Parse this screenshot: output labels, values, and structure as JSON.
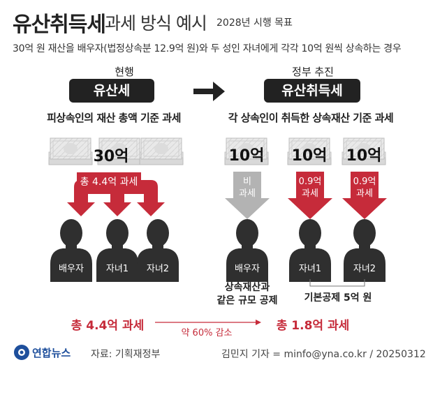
{
  "header": {
    "title_main": "유산취득세",
    "title_sub": "과세 방식 예시",
    "title_note": "2028년 시행 목표",
    "description": "30억 원 재산을 배우자(법정상속분 12.9억 원)와 두 성인 자녀에게 각각 10억 원씩 상속하는 경우"
  },
  "current": {
    "label": "현행",
    "pill": "유산세",
    "basis": "피상속인의 재산 총액 기준 과세",
    "amount": "30억",
    "tax_label": "총 4.4억 과세",
    "persons": [
      "배우자",
      "자녀1",
      "자녀2"
    ]
  },
  "proposed": {
    "label": "정부 추진",
    "pill": "유산취득세",
    "basis": "각 상속인이 취득한 상속재산 기준 과세",
    "amounts": [
      "10억",
      "10억",
      "10억"
    ],
    "taxes": [
      {
        "line1": "비",
        "line2": "과세"
      },
      {
        "line1": "0.9억",
        "line2": "과세"
      },
      {
        "line1": "0.9억",
        "line2": "과세"
      }
    ],
    "persons": [
      "배우자",
      "자녀1",
      "자녀2"
    ],
    "note_spouse": "상속재산과\n같은 규모 공제",
    "note_children": "기본공제 5억 원"
  },
  "summary": {
    "current_total": "총 4.4억 과세",
    "reduction": "약 60% 감소",
    "proposed_total": "총 1.8억 과세"
  },
  "footer": {
    "logo_text": "연합뉴스",
    "source": "자료: 기획재정부",
    "credit": "김민지 기자 = minfo@yna.co.kr / 20250312"
  },
  "colors": {
    "accent_red": "#c62b3a",
    "dark": "#222222",
    "gray_arrow": "#b3b3b3",
    "logo_blue": "#1e4f9c"
  }
}
